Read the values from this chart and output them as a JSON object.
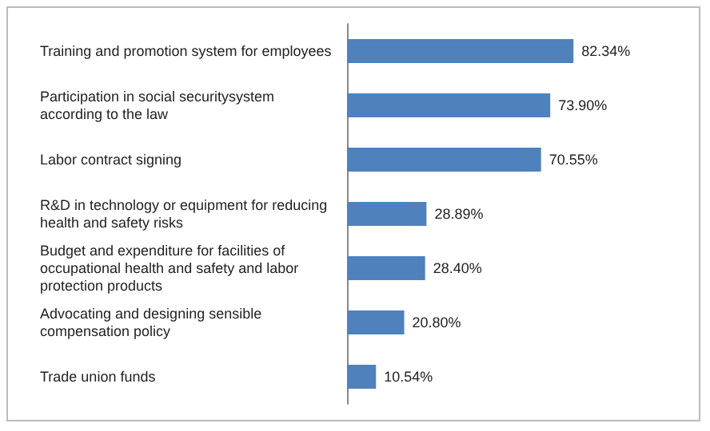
{
  "chart_data": {
    "type": "bar",
    "orientation": "horizontal",
    "tick_labels": "y",
    "categories": [
      "Training and promotion system for employees",
      "Participation in social securitysystem according to the law",
      "Labor contract signing",
      "R&D in technology or equipment for reducing health and safety risks",
      "Budget and expenditure for facilities of occupational health and safety and labor protection products",
      "Advocating and designing sensible compensation policy",
      "Trade union funds"
    ],
    "values": [
      82.34,
      73.9,
      70.55,
      28.89,
      28.4,
      20.8,
      10.54
    ],
    "value_labels": [
      "82.34%",
      "73.90%",
      "70.55%",
      "28.89%",
      "28.40%",
      "20.80%",
      "10.54%"
    ],
    "color": "#4f81bd"
  }
}
